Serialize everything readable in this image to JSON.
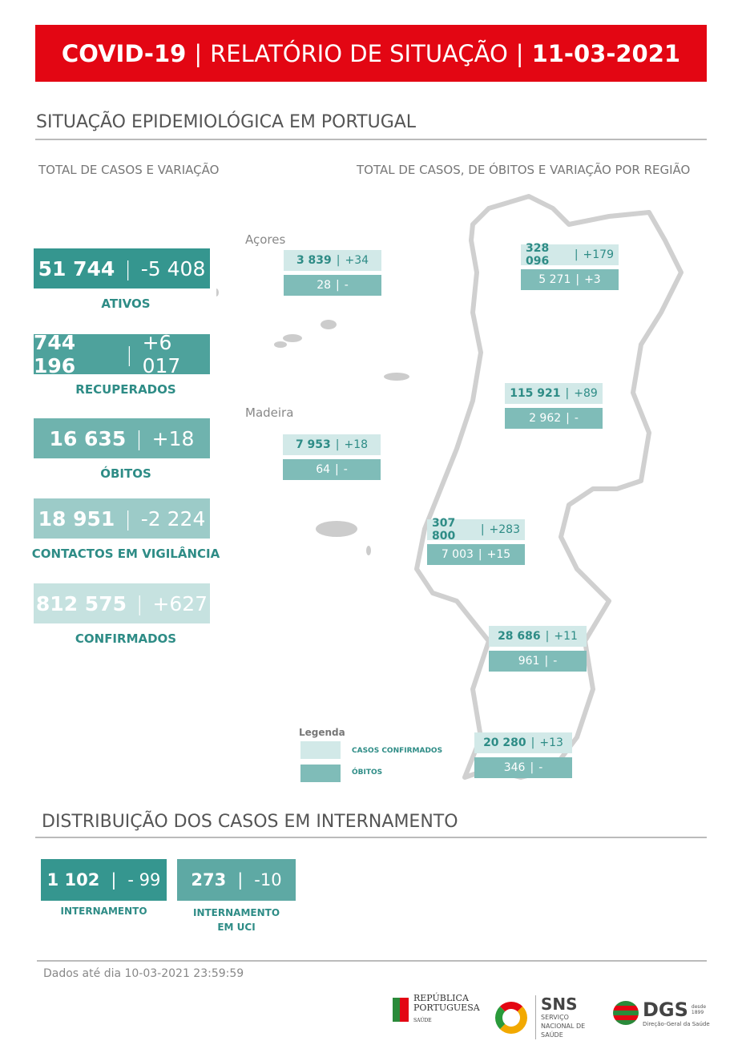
{
  "header": {
    "part1": "COVID-19",
    "sep": "|",
    "part2": "RELATÓRIO DE SITUAÇÃO",
    "part3": "11-03-2021"
  },
  "section1": {
    "title": "SITUAÇÃO EPIDEMIOLÓGICA EM PORTUGAL",
    "left_sub": "TOTAL DE CASOS E VARIAÇÃO",
    "right_sub": "TOTAL DE CASOS, DE ÓBITOS E VARIAÇÃO POR REGIÃO"
  },
  "kpis": [
    {
      "value": "51 744",
      "delta": "-5 408",
      "label": "ATIVOS",
      "color": "#35968f"
    },
    {
      "value": "744 196",
      "delta": "+6 017",
      "label": "RECUPERADOS",
      "color": "#4ea29c"
    },
    {
      "value": "16 635",
      "delta": "+18",
      "label": "ÓBITOS",
      "color": "#6fb3ae"
    },
    {
      "value": "18 951",
      "delta": "-2 224",
      "label": "CONTACTOS EM VIGILÂNCIA",
      "color": "#9ccbc8"
    },
    {
      "value": "812 575",
      "delta": "+627",
      "label": "CONFIRMADOS",
      "color": "#c6e2e0"
    }
  ],
  "regions": [
    {
      "name": "Açores",
      "cases": "3 839",
      "cases_delta": "+34",
      "deaths": "28",
      "deaths_delta": "-"
    },
    {
      "name": "Madeira",
      "cases": "7 953",
      "cases_delta": "+18",
      "deaths": "64",
      "deaths_delta": "-"
    },
    {
      "cases": "328 096",
      "cases_delta": "+179",
      "deaths": "5 271",
      "deaths_delta": "+3"
    },
    {
      "cases": "115 921",
      "cases_delta": "+89",
      "deaths": "2 962",
      "deaths_delta": "-"
    },
    {
      "cases": "307 800",
      "cases_delta": "+283",
      "deaths": "7 003",
      "deaths_delta": "+15"
    },
    {
      "cases": "28 686",
      "cases_delta": "+11",
      "deaths": "961",
      "deaths_delta": "-"
    },
    {
      "cases": "20 280",
      "cases_delta": "+13",
      "deaths": "346",
      "deaths_delta": "-"
    }
  ],
  "legend": {
    "title": "Legenda",
    "confirmed": "CASOS CONFIRMADOS",
    "deaths": "ÓBITOS",
    "confirmed_color": "#d2e9e8",
    "deaths_color": "#7fbcb8"
  },
  "section2": {
    "title": "DISTRIBUIÇÃO DOS CASOS EM INTERNAMENTO",
    "items": [
      {
        "value": "1 102",
        "delta": "- 99",
        "label": "INTERNAMENTO",
        "label2": "",
        "color": "#35968f"
      },
      {
        "value": "273",
        "delta": "-10",
        "label": "INTERNAMENTO",
        "label2": "EM UCI",
        "color": "#5ea9a4"
      }
    ]
  },
  "footer": {
    "note": "Dados até dia 10-03-2021 23:59:59",
    "logos": {
      "rp": "REPÚBLICA PORTUGUESA",
      "rp_sub": "SAÚDE",
      "sns": "SNS",
      "sns_sub": "SERVIÇO NACIONAL DE SAÚDE",
      "dgs": "DGS",
      "dgs_since": "desde 1899",
      "dgs_sub": "Direção-Geral da Saúde"
    }
  }
}
